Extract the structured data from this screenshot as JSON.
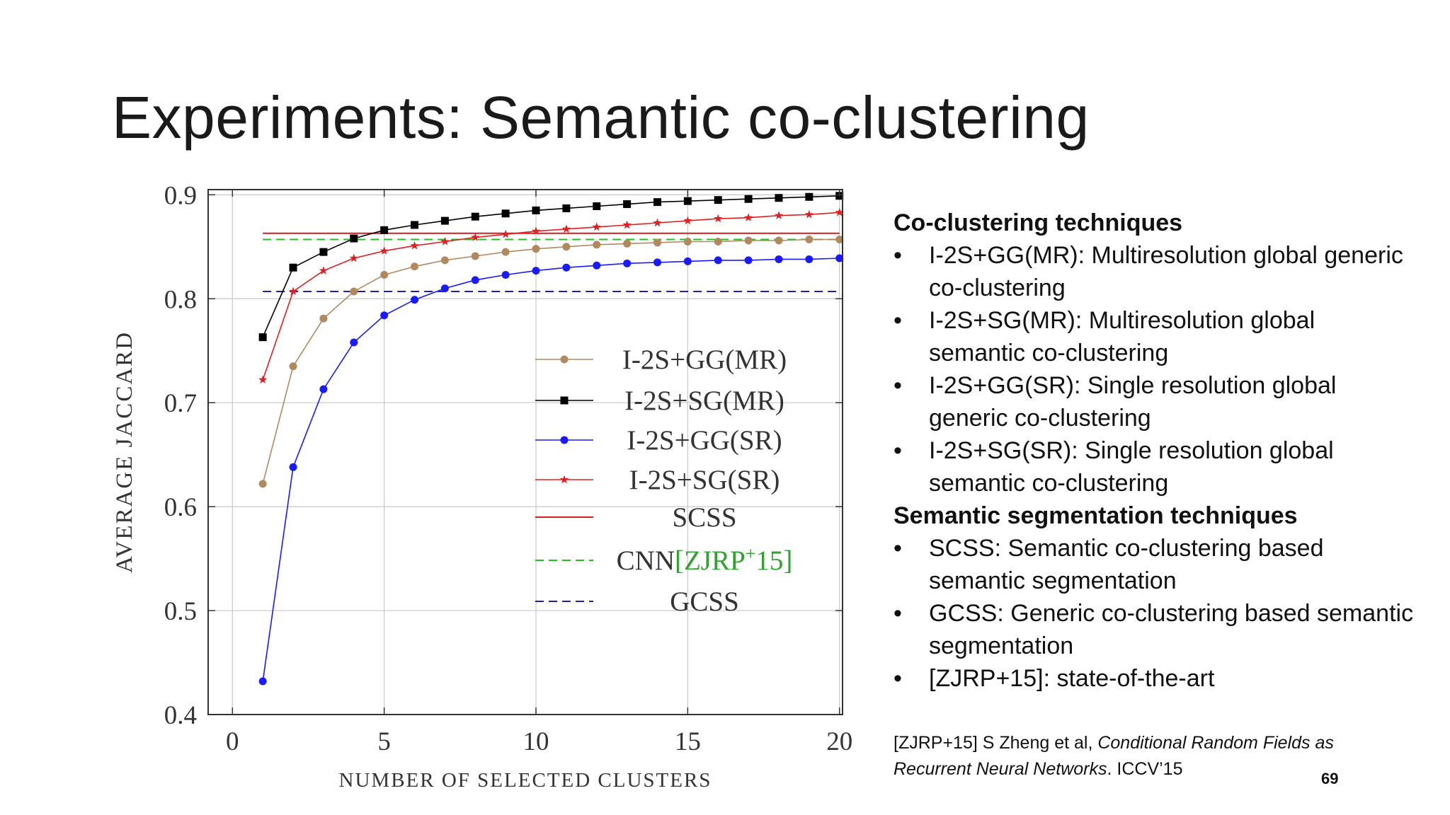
{
  "slide": {
    "title": "Experiments: Semantic co-clustering",
    "page_number": "69"
  },
  "panel": {
    "heading1": "Co-clustering techniques",
    "items1": [
      "I-2S+GG(MR): Multiresolution global generic co-clustering",
      "I-2S+SG(MR): Multiresolution global semantic co-clustering",
      "I-2S+GG(SR): Single resolution global generic co-clustering",
      "I-2S+SG(SR): Single resolution global semantic co-clustering"
    ],
    "heading2": "Semantic segmentation techniques",
    "items2": [
      "SCSS: Semantic co-clustering based semantic segmentation",
      "GCSS: Generic co-clustering based semantic segmentation",
      "[ZJRP+15]: state-of-the-art"
    ],
    "bullet": "•",
    "reference": {
      "prefix": "[ZJRP+15] S Zheng et al, ",
      "title": "Conditional Random Fields as Recurrent Neural Networks",
      "suffix": ". ICCV’15"
    }
  },
  "chart_data": {
    "type": "line",
    "xlabel": "NUMBER OF SELECTED CLUSTERS",
    "ylabel": "AVERAGE JACCARD",
    "xlim": [
      -0.8,
      20.1
    ],
    "ylim": [
      0.4,
      0.905
    ],
    "xticks": [
      0,
      5,
      10,
      15,
      20
    ],
    "yticks": [
      0.4,
      0.5,
      0.6,
      0.7,
      0.8,
      0.9
    ],
    "grid": true,
    "legend_position": "center-right",
    "x": [
      1,
      2,
      3,
      4,
      5,
      6,
      7,
      8,
      9,
      10,
      11,
      12,
      13,
      14,
      15,
      16,
      17,
      18,
      19,
      20
    ],
    "series": [
      {
        "name": "I-2S+GG(MR)",
        "color": "#b08a5e",
        "marker": "circle",
        "values": [
          0.622,
          0.735,
          0.781,
          0.807,
          0.823,
          0.831,
          0.837,
          0.841,
          0.845,
          0.848,
          0.85,
          0.852,
          0.853,
          0.854,
          0.855,
          0.855,
          0.856,
          0.856,
          0.857,
          0.857
        ]
      },
      {
        "name": "I-2S+SG(MR)",
        "color": "#000000",
        "marker": "square",
        "values": [
          0.763,
          0.83,
          0.845,
          0.858,
          0.866,
          0.871,
          0.875,
          0.879,
          0.882,
          0.885,
          0.887,
          0.889,
          0.891,
          0.893,
          0.894,
          0.895,
          0.896,
          0.897,
          0.898,
          0.899
        ]
      },
      {
        "name": "I-2S+GG(SR)",
        "color": "#1a1aff",
        "marker": "circle",
        "values": [
          0.432,
          0.638,
          0.713,
          0.758,
          0.784,
          0.799,
          0.81,
          0.818,
          0.823,
          0.827,
          0.83,
          0.832,
          0.834,
          0.835,
          0.836,
          0.837,
          0.837,
          0.838,
          0.838,
          0.839
        ]
      },
      {
        "name": "I-2S+SG(SR)",
        "color": "#e02020",
        "marker": "star",
        "values": [
          0.722,
          0.807,
          0.827,
          0.839,
          0.846,
          0.851,
          0.855,
          0.859,
          0.862,
          0.865,
          0.867,
          0.869,
          0.871,
          0.873,
          0.875,
          0.877,
          0.878,
          0.88,
          0.881,
          0.883
        ]
      }
    ],
    "reference_lines": [
      {
        "name": "SCSS",
        "color": "#d02020",
        "dash": "solid",
        "value": 0.863
      },
      {
        "name": "CNN",
        "citation": "[ZJRP",
        "citation_sup": "+",
        "citation_end": "15]",
        "color": "#20c020",
        "citation_color": "#30a030",
        "dash": "dashed",
        "value": 0.857
      },
      {
        "name": "GCSS",
        "color": "#2020a0",
        "dash": "dashed",
        "value": 0.807
      }
    ],
    "reference_line_x_range": [
      1,
      20
    ]
  }
}
